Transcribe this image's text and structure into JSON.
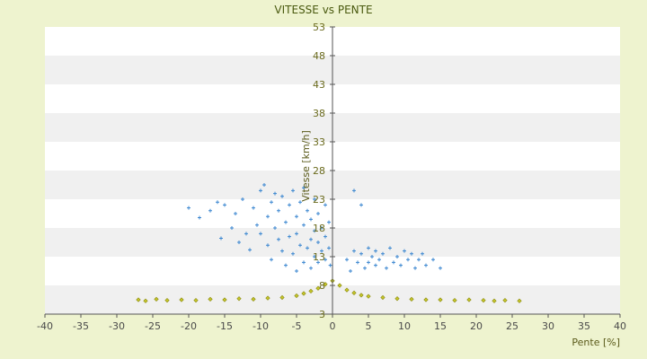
{
  "chart_data": {
    "type": "scatter",
    "title": "VITESSE vs PENTE",
    "xlabel": "Pente [%]",
    "ylabel": "Vitesse [km/h]",
    "xlim": [
      -40,
      40
    ],
    "ylim": [
      3,
      53
    ],
    "x_ticks": [
      -40,
      -35,
      -30,
      -25,
      -20,
      -15,
      -10,
      -5,
      0,
      5,
      10,
      15,
      20,
      25,
      30,
      35,
      40
    ],
    "y_ticks": [
      3,
      8,
      13,
      18,
      23,
      28,
      33,
      38,
      43,
      48,
      53
    ],
    "grid": "horizontal-bands",
    "legend": "none",
    "series": [
      {
        "color": "#3a86d0",
        "marker": "plus",
        "description_points": [
          [
            -20,
            21.5
          ],
          [
            -18.5,
            19.8
          ],
          [
            -17,
            21
          ],
          [
            -16,
            22.5
          ],
          [
            -15.5,
            16.2
          ],
          [
            -15,
            22
          ],
          [
            -14,
            18
          ],
          [
            -13.5,
            20.5
          ],
          [
            -13,
            15.5
          ],
          [
            -12.5,
            23
          ],
          [
            -12,
            17
          ],
          [
            -11.5,
            14.2
          ],
          [
            -11,
            21.5
          ],
          [
            -10.5,
            18.5
          ],
          [
            -10,
            24.5
          ],
          [
            -10,
            17
          ],
          [
            -9.5,
            25.5
          ],
          [
            -9,
            20
          ],
          [
            -9,
            15
          ],
          [
            -8.5,
            22.5
          ],
          [
            -8.5,
            12.5
          ],
          [
            -8,
            18
          ],
          [
            -8,
            24
          ],
          [
            -7.5,
            16
          ],
          [
            -7.5,
            21
          ],
          [
            -7,
            14
          ],
          [
            -7,
            23.5
          ],
          [
            -6.5,
            19
          ],
          [
            -6.5,
            11.5
          ],
          [
            -6,
            22
          ],
          [
            -6,
            16.5
          ],
          [
            -5.5,
            24.5
          ],
          [
            -5.5,
            13.5
          ],
          [
            -5,
            20
          ],
          [
            -5,
            17
          ],
          [
            -5,
            10.5
          ],
          [
            -4.5,
            22.5
          ],
          [
            -4.5,
            15
          ],
          [
            -4,
            18.5
          ],
          [
            -4,
            12
          ],
          [
            -4,
            25
          ],
          [
            -3.5,
            21
          ],
          [
            -3.5,
            14.5
          ],
          [
            -3,
            19.5
          ],
          [
            -3,
            16
          ],
          [
            -3,
            11
          ],
          [
            -2.5,
            23
          ],
          [
            -2.5,
            17.5
          ],
          [
            -2.5,
            13
          ],
          [
            -2,
            20.5
          ],
          [
            -2,
            15.5
          ],
          [
            -2,
            12
          ],
          [
            -1.5,
            18
          ],
          [
            -1.5,
            14
          ],
          [
            -1,
            22
          ],
          [
            -1,
            16.5
          ],
          [
            -1,
            12.5
          ],
          [
            -0.5,
            19
          ],
          [
            -0.5,
            14.5
          ],
          [
            -0.3,
            11.5
          ],
          [
            2,
            12.5
          ],
          [
            2.5,
            10.5
          ],
          [
            3,
            14
          ],
          [
            3,
            24.5
          ],
          [
            3.5,
            12
          ],
          [
            4,
            13.5
          ],
          [
            4,
            22
          ],
          [
            4.5,
            11
          ],
          [
            5,
            14.5
          ],
          [
            5,
            12
          ],
          [
            5.5,
            13
          ],
          [
            6,
            11.5
          ],
          [
            6,
            14
          ],
          [
            6.5,
            12.5
          ],
          [
            7,
            13.5
          ],
          [
            7.5,
            11
          ],
          [
            8,
            14.5
          ],
          [
            8.5,
            12
          ],
          [
            9,
            13
          ],
          [
            9.5,
            11.5
          ],
          [
            10,
            14
          ],
          [
            10.5,
            12.5
          ],
          [
            11,
            13.5
          ],
          [
            11.5,
            11
          ],
          [
            12,
            12.5
          ],
          [
            12.5,
            13.5
          ],
          [
            13,
            11.5
          ],
          [
            14,
            12.5
          ],
          [
            15,
            11
          ]
        ]
      },
      {
        "color": "#8a8a10",
        "marker": "diamond",
        "description_points": [
          [
            -27,
            5.5
          ],
          [
            -26,
            5.3
          ],
          [
            -24.5,
            5.6
          ],
          [
            -23,
            5.4
          ],
          [
            -21,
            5.5
          ],
          [
            -19,
            5.4
          ],
          [
            -17,
            5.6
          ],
          [
            -15,
            5.5
          ],
          [
            -13,
            5.7
          ],
          [
            -11,
            5.6
          ],
          [
            -9,
            5.8
          ],
          [
            -7,
            5.9
          ],
          [
            -5,
            6.2
          ],
          [
            -4,
            6.6
          ],
          [
            -3,
            7.0
          ],
          [
            -2,
            7.5
          ],
          [
            -1,
            8.2
          ],
          [
            0,
            8.8
          ],
          [
            1,
            8.0
          ],
          [
            2,
            7.2
          ],
          [
            3,
            6.7
          ],
          [
            4,
            6.3
          ],
          [
            5,
            6.1
          ],
          [
            7,
            5.9
          ],
          [
            9,
            5.7
          ],
          [
            11,
            5.6
          ],
          [
            13,
            5.5
          ],
          [
            15,
            5.5
          ],
          [
            17,
            5.4
          ],
          [
            19,
            5.5
          ],
          [
            21,
            5.4
          ],
          [
            22.5,
            5.3
          ],
          [
            24,
            5.4
          ],
          [
            26,
            5.3
          ]
        ]
      }
    ]
  }
}
